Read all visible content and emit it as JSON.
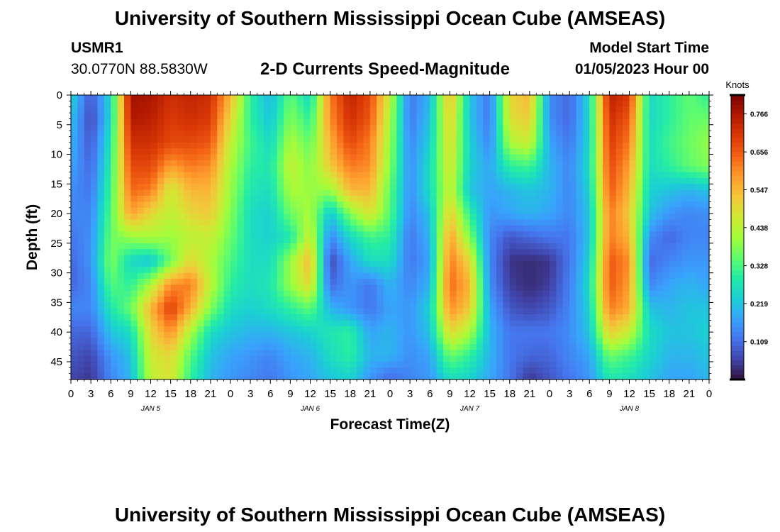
{
  "header": {
    "title": "University of Southern Mississippi Ocean Cube (AMSEAS)",
    "station_id": "USMR1",
    "location": "30.0770N  88.5830W",
    "subtitle": "2-D Currents Speed-Magnitude",
    "model_start_label": "Model Start Time",
    "model_start_value": "01/05/2023 Hour 00"
  },
  "footer": {
    "title": "University of Southern Mississippi Ocean Cube (AMSEAS)"
  },
  "colors": {
    "scale": [
      "#30123b",
      "#4145ab",
      "#4675ed",
      "#39a2fc",
      "#1bcfd4",
      "#24eca6",
      "#61fc6c",
      "#a4fc3b",
      "#d1e834",
      "#f3c63a",
      "#fe9b2d",
      "#f36315",
      "#d93806",
      "#b11901",
      "#7a0402"
    ]
  },
  "chart_data": {
    "type": "heatmap",
    "xlabel": "Forecast Time(Z)",
    "ylabel": "Depth (ft)",
    "x_range_hours": [
      0,
      96
    ],
    "y_range_ft": [
      0,
      48
    ],
    "x_tick_labels": [
      "0",
      "3",
      "6",
      "9",
      "12",
      "15",
      "18",
      "21",
      "0",
      "3",
      "6",
      "9",
      "12",
      "15",
      "18",
      "21",
      "0",
      "3",
      "6",
      "9",
      "12",
      "15",
      "18",
      "21",
      "0",
      "3",
      "6",
      "9",
      "12",
      "15",
      "18",
      "21",
      "0"
    ],
    "y_ticks": [
      0,
      5,
      10,
      15,
      20,
      25,
      30,
      35,
      40,
      45
    ],
    "date_labels": [
      {
        "label": "JAN 5",
        "hour": 12
      },
      {
        "label": "JAN 6",
        "hour": 36
      },
      {
        "label": "JAN 7",
        "hour": 60
      },
      {
        "label": "JAN 8",
        "hour": 84
      }
    ],
    "colorbar": {
      "title": "Knots",
      "range": [
        0.0,
        0.82
      ],
      "tick_labels": [
        "0.766",
        "0.656",
        "0.547",
        "0.438",
        "0.328",
        "0.219",
        "0.109"
      ]
    },
    "time_hours": [
      0,
      3,
      6,
      9,
      12,
      15,
      18,
      21,
      24,
      27,
      30,
      33,
      36,
      39,
      42,
      45,
      48,
      51,
      54,
      57,
      60,
      63,
      66,
      69,
      72,
      75,
      78,
      81,
      84,
      87,
      90,
      93,
      96
    ],
    "depths_ft": [
      0,
      4,
      8,
      12,
      16,
      20,
      24,
      28,
      32,
      36,
      40,
      44,
      48
    ],
    "speed_knots": [
      [
        0.25,
        0.08,
        0.25,
        0.78,
        0.77,
        0.72,
        0.74,
        0.72,
        0.55,
        0.3,
        0.2,
        0.35,
        0.25,
        0.62,
        0.74,
        0.68,
        0.45,
        0.12,
        0.2,
        0.55,
        0.22,
        0.12,
        0.5,
        0.55,
        0.15,
        0.1,
        0.25,
        0.75,
        0.7,
        0.25,
        0.3,
        0.35,
        0.3
      ],
      [
        0.22,
        0.06,
        0.25,
        0.76,
        0.75,
        0.7,
        0.72,
        0.7,
        0.5,
        0.3,
        0.22,
        0.38,
        0.3,
        0.6,
        0.72,
        0.66,
        0.42,
        0.12,
        0.22,
        0.52,
        0.22,
        0.12,
        0.48,
        0.52,
        0.15,
        0.1,
        0.25,
        0.72,
        0.66,
        0.25,
        0.3,
        0.35,
        0.36
      ],
      [
        0.2,
        0.08,
        0.28,
        0.72,
        0.72,
        0.68,
        0.68,
        0.66,
        0.45,
        0.32,
        0.25,
        0.42,
        0.35,
        0.56,
        0.68,
        0.62,
        0.4,
        0.14,
        0.24,
        0.5,
        0.24,
        0.14,
        0.42,
        0.46,
        0.18,
        0.12,
        0.25,
        0.7,
        0.62,
        0.26,
        0.32,
        0.36,
        0.4
      ],
      [
        0.18,
        0.1,
        0.3,
        0.68,
        0.68,
        0.58,
        0.62,
        0.6,
        0.42,
        0.3,
        0.28,
        0.45,
        0.38,
        0.52,
        0.62,
        0.6,
        0.38,
        0.15,
        0.26,
        0.48,
        0.24,
        0.18,
        0.3,
        0.32,
        0.2,
        0.14,
        0.26,
        0.68,
        0.58,
        0.26,
        0.3,
        0.35,
        0.38
      ],
      [
        0.15,
        0.12,
        0.32,
        0.64,
        0.62,
        0.46,
        0.55,
        0.55,
        0.4,
        0.28,
        0.26,
        0.42,
        0.4,
        0.4,
        0.55,
        0.55,
        0.35,
        0.15,
        0.26,
        0.46,
        0.22,
        0.18,
        0.2,
        0.22,
        0.2,
        0.14,
        0.24,
        0.66,
        0.55,
        0.24,
        0.22,
        0.2,
        0.22
      ],
      [
        0.14,
        0.14,
        0.34,
        0.58,
        0.5,
        0.44,
        0.5,
        0.52,
        0.38,
        0.26,
        0.24,
        0.36,
        0.42,
        0.22,
        0.38,
        0.48,
        0.34,
        0.14,
        0.22,
        0.52,
        0.3,
        0.16,
        0.18,
        0.2,
        0.18,
        0.14,
        0.22,
        0.62,
        0.52,
        0.22,
        0.16,
        0.14,
        0.15
      ],
      [
        0.12,
        0.15,
        0.36,
        0.4,
        0.42,
        0.4,
        0.44,
        0.45,
        0.36,
        0.26,
        0.24,
        0.28,
        0.46,
        0.14,
        0.25,
        0.32,
        0.3,
        0.12,
        0.2,
        0.58,
        0.38,
        0.14,
        0.08,
        0.1,
        0.12,
        0.12,
        0.22,
        0.62,
        0.55,
        0.15,
        0.1,
        0.14,
        0.14
      ],
      [
        0.1,
        0.16,
        0.38,
        0.25,
        0.22,
        0.36,
        0.5,
        0.42,
        0.33,
        0.26,
        0.26,
        0.4,
        0.55,
        0.06,
        0.18,
        0.26,
        0.26,
        0.12,
        0.18,
        0.62,
        0.5,
        0.14,
        0.04,
        0.03,
        0.04,
        0.12,
        0.24,
        0.66,
        0.6,
        0.1,
        0.14,
        0.16,
        0.16
      ],
      [
        0.1,
        0.14,
        0.34,
        0.3,
        0.42,
        0.6,
        0.62,
        0.44,
        0.3,
        0.26,
        0.28,
        0.4,
        0.5,
        0.1,
        0.16,
        0.12,
        0.2,
        0.14,
        0.2,
        0.64,
        0.55,
        0.15,
        0.05,
        0.03,
        0.05,
        0.13,
        0.26,
        0.66,
        0.58,
        0.14,
        0.18,
        0.2,
        0.18
      ],
      [
        0.14,
        0.14,
        0.28,
        0.36,
        0.55,
        0.7,
        0.56,
        0.38,
        0.26,
        0.24,
        0.26,
        0.3,
        0.35,
        0.2,
        0.16,
        0.12,
        0.18,
        0.16,
        0.24,
        0.6,
        0.52,
        0.18,
        0.08,
        0.06,
        0.08,
        0.14,
        0.24,
        0.62,
        0.56,
        0.22,
        0.2,
        0.22,
        0.22
      ],
      [
        0.1,
        0.1,
        0.22,
        0.26,
        0.5,
        0.6,
        0.42,
        0.26,
        0.22,
        0.2,
        0.2,
        0.22,
        0.24,
        0.28,
        0.3,
        0.18,
        0.2,
        0.16,
        0.22,
        0.5,
        0.42,
        0.2,
        0.12,
        0.12,
        0.12,
        0.15,
        0.22,
        0.52,
        0.45,
        0.26,
        0.22,
        0.22,
        0.24
      ],
      [
        0.08,
        0.06,
        0.16,
        0.22,
        0.46,
        0.5,
        0.34,
        0.22,
        0.18,
        0.16,
        0.14,
        0.18,
        0.2,
        0.26,
        0.3,
        0.2,
        0.2,
        0.15,
        0.18,
        0.36,
        0.3,
        0.2,
        0.12,
        0.1,
        0.1,
        0.14,
        0.18,
        0.36,
        0.32,
        0.25,
        0.2,
        0.2,
        0.22
      ],
      [
        0.06,
        0.04,
        0.14,
        0.2,
        0.44,
        0.48,
        0.3,
        0.2,
        0.16,
        0.14,
        0.12,
        0.16,
        0.18,
        0.22,
        0.24,
        0.16,
        0.1,
        0.14,
        0.16,
        0.26,
        0.24,
        0.18,
        0.12,
        0.04,
        0.08,
        0.12,
        0.16,
        0.28,
        0.26,
        0.22,
        0.18,
        0.18,
        0.2
      ]
    ]
  }
}
